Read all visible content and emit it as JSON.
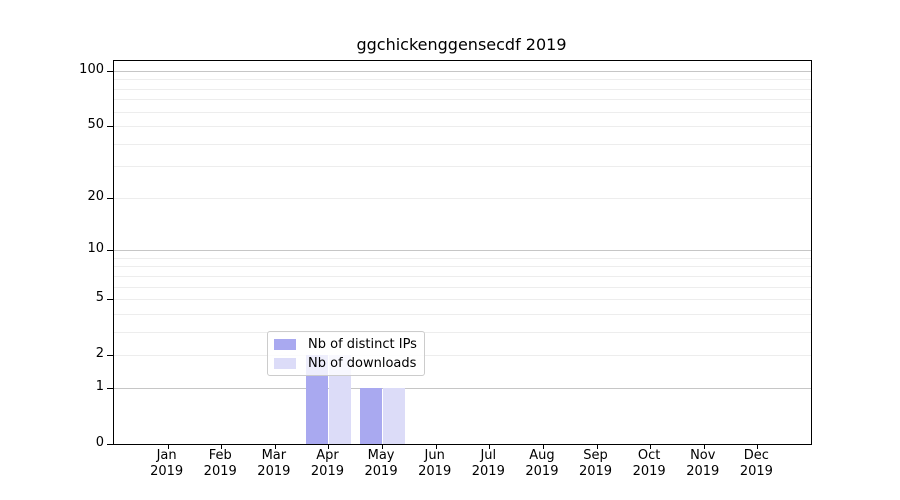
{
  "title": "ggchickenggensecdf 2019",
  "colors": {
    "background": "#ffffff",
    "spine": "#000000",
    "gridline_major": "#c6c6c6",
    "gridline_minor": "#ededed",
    "legend_border": "#cccccc",
    "series_distinct_ips": "#a9a9f0",
    "series_downloads": "#dcdcf8"
  },
  "chart_data": {
    "type": "bar",
    "title": "ggchickenggensecdf 2019",
    "xlabel": "",
    "ylabel": "",
    "categories": [
      "Jan",
      "Feb",
      "Mar",
      "Apr",
      "May",
      "Jun",
      "Jul",
      "Aug",
      "Sep",
      "Oct",
      "Nov",
      "Dec"
    ],
    "year_label": "2019",
    "series": [
      {
        "name": "Nb of distinct IPs",
        "color": "#a9a9f0",
        "values": [
          0,
          0,
          0,
          2,
          1,
          0,
          0,
          0,
          0,
          0,
          0,
          0
        ]
      },
      {
        "name": "Nb of downloads",
        "color": "#dcdcf8",
        "values": [
          0,
          0,
          0,
          2,
          1,
          0,
          0,
          0,
          0,
          0,
          0,
          0
        ]
      }
    ],
    "yscale": "log1p",
    "ylim": [
      0,
      113
    ],
    "yticks_labeled": [
      0,
      1,
      2,
      5,
      10,
      20,
      50,
      100
    ],
    "gridlines_major": [
      1,
      10,
      100
    ],
    "gridlines_minor": [
      2,
      3,
      4,
      5,
      6,
      7,
      8,
      9,
      20,
      30,
      40,
      50,
      60,
      70,
      80,
      90
    ],
    "grid": true,
    "legend": {
      "position": "lower-right-of-center",
      "entries": [
        "Nb of distinct IPs",
        "Nb of downloads"
      ]
    }
  }
}
